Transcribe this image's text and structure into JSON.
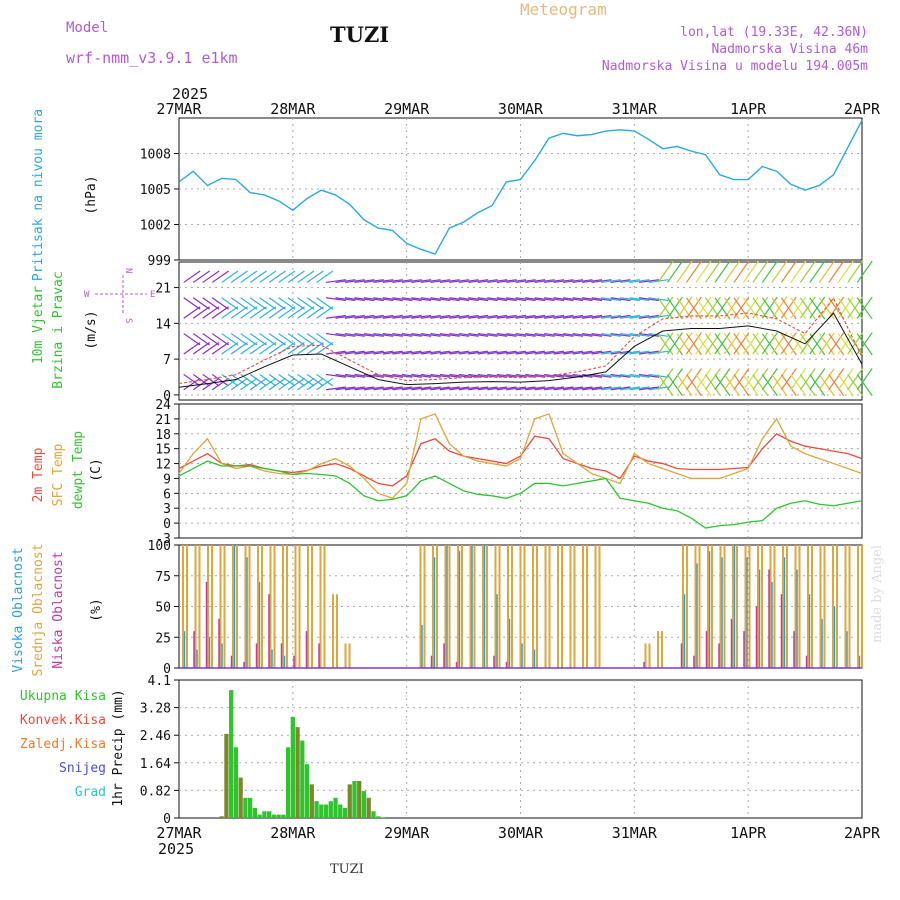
{
  "header": {
    "model_label": "Model",
    "model_version": "wrf-nmm_v3.9.1  e1km",
    "station": "TUZI",
    "title": "Meteogram",
    "location": "lon,lat (19.33E, 42.36N)",
    "elevation": "Nadmorska Visina 46m",
    "model_elevation": "Nadmorska Visina u modelu 194.005m"
  },
  "footer": {
    "station": "TUZI",
    "signature": "made by Angel"
  },
  "time_axis": {
    "year": "2025",
    "labels": [
      "27MAR",
      "28MAR",
      "29MAR",
      "30MAR",
      "31MAR",
      "1APR",
      "2APR"
    ]
  },
  "colors": {
    "pressure": "#2aa9e0",
    "temp2m": "#ee4a3a",
    "sfc_temp": "#dea63c",
    "dewpoint": "#2ec42e",
    "cloud_high": "#2aa0d8",
    "cloud_mid": "#dea63c",
    "cloud_low": "#c03aa0",
    "precip_total": "#2ec42e",
    "precip_conv": "#ee4a3a",
    "precip_frozen": "#ee7a30",
    "snow": "#4a4ae0",
    "hail": "#2cc6c6",
    "wind_purple": "#8a2ac8",
    "wind_cyan": "#22b8d8"
  },
  "panels": {
    "pressure": {
      "ylabel": "Pritisak na nivou mora",
      "unit": "(hPa)"
    },
    "wind": {
      "ylabel_1": "10m Vjetar",
      "ylabel_2": "Brzina i Pravac",
      "unit": "(m/s)",
      "compass_n": "N",
      "compass_s": "S",
      "compass_w": "W",
      "compass_e": "E"
    },
    "temp": {
      "ylabel_1": "2m Temp",
      "ylabel_2": "SFC Temp",
      "ylabel_3": "dewpt Temp",
      "unit": "(C)"
    },
    "cloud": {
      "ylabel_1": "Visoka Oblacnost",
      "ylabel_2": "Srednja Oblacnost",
      "ylabel_3": "Niska Oblacnost",
      "unit": "(%)"
    },
    "precip": {
      "legend": [
        "Ukupna Kisa",
        "Konvek.Kisa",
        "Zaledj.Kisa",
        "Snijeg",
        "Grad"
      ],
      "unit": "1hr Precip (mm)"
    }
  },
  "chart_data": [
    {
      "type": "line",
      "name": "pressure",
      "title": "",
      "ylabel": "Pritisak na nivou mora (hPa)",
      "ylim": [
        999,
        1011
      ],
      "yticks": [
        999,
        1002,
        1005,
        1008
      ],
      "x_hours": [
        0,
        3,
        6,
        9,
        12,
        15,
        18,
        21,
        24,
        27,
        30,
        33,
        36,
        39,
        42,
        45,
        48,
        51,
        54,
        57,
        60,
        63,
        66,
        69,
        72,
        75,
        78,
        81,
        84,
        87,
        90,
        93,
        96,
        99,
        102,
        105,
        108,
        111,
        114,
        117,
        120,
        123,
        126,
        129,
        132,
        135,
        138,
        141,
        144
      ],
      "y": [
        1005.6,
        1006.5,
        1005.3,
        1005.9,
        1005.8,
        1004.7,
        1004.5,
        1004.0,
        1003.2,
        1004.2,
        1004.9,
        1004.5,
        1003.7,
        1002.4,
        1001.7,
        1001.5,
        1000.4,
        999.9,
        999.5,
        1001.7,
        1002.2,
        1003.0,
        1003.6,
        1005.6,
        1005.8,
        1007.4,
        1009.3,
        1009.7,
        1009.5,
        1009.6,
        1009.9,
        1010.0,
        1009.9,
        1009.2,
        1008.4,
        1008.6,
        1008.2,
        1007.9,
        1006.2,
        1005.8,
        1005.8,
        1006.9,
        1006.5,
        1005.4,
        1004.9,
        1005.3,
        1006.2,
        1008.5,
        1010.8
      ]
    },
    {
      "type": "line",
      "name": "wind_speed",
      "title": "",
      "ylabel": "10m Vjetar Brzina i Pravac (m/s)",
      "ylim": [
        -1,
        26
      ],
      "yticks": [
        0,
        7,
        14,
        21
      ],
      "x_hours": [
        0,
        6,
        12,
        18,
        24,
        30,
        36,
        42,
        48,
        54,
        60,
        66,
        72,
        78,
        84,
        90,
        96,
        102,
        108,
        114,
        120,
        126,
        132,
        138,
        144
      ],
      "y": [
        1.5,
        2.2,
        3.0,
        5.5,
        7.8,
        8.0,
        5.5,
        3.0,
        2.0,
        2.2,
        2.5,
        2.6,
        2.5,
        2.8,
        3.5,
        4.5,
        9.5,
        12.5,
        13.0,
        13.0,
        13.5,
        12.5,
        10.0,
        16.0,
        6.0
      ]
    },
    {
      "type": "line",
      "name": "temperature",
      "title": "",
      "ylabel": "2m Temp / SFC Temp / dewpt Temp (C)",
      "ylim": [
        -3,
        24
      ],
      "yticks": [
        -3,
        0,
        3,
        6,
        9,
        12,
        15,
        18,
        21,
        24
      ],
      "x_hours": [
        0,
        3,
        6,
        9,
        12,
        15,
        18,
        21,
        24,
        27,
        30,
        33,
        36,
        39,
        42,
        45,
        48,
        51,
        54,
        57,
        60,
        63,
        66,
        69,
        72,
        75,
        78,
        81,
        84,
        87,
        90,
        93,
        96,
        99,
        102,
        105,
        108,
        111,
        114,
        117,
        120,
        123,
        126,
        129,
        132,
        135,
        138,
        141,
        144
      ],
      "series": [
        {
          "name": "2m Temp",
          "values": [
            11.0,
            12.5,
            14.0,
            12.0,
            11.5,
            11.8,
            11.0,
            10.5,
            10.2,
            10.6,
            11.5,
            12.0,
            11.0,
            9.5,
            8.0,
            7.5,
            9.5,
            16.0,
            17.0,
            14.5,
            13.5,
            13.0,
            12.5,
            12.0,
            13.5,
            17.5,
            17.0,
            13.0,
            12.0,
            11.0,
            10.5,
            9.0,
            13.5,
            12.5,
            12.0,
            11.0,
            10.8,
            10.8,
            10.8,
            11.0,
            11.2,
            15.0,
            18.0,
            16.5,
            15.5,
            15.0,
            14.5,
            14.0,
            13.0
          ]
        },
        {
          "name": "SFC Temp",
          "values": [
            10.0,
            14.0,
            17.0,
            12.0,
            11.0,
            11.5,
            10.5,
            10.0,
            9.8,
            10.5,
            12.0,
            13.0,
            11.5,
            9.0,
            6.0,
            5.0,
            8.0,
            21.0,
            22.0,
            16.0,
            13.5,
            12.5,
            12.0,
            11.5,
            13.0,
            21.0,
            22.0,
            14.0,
            12.0,
            10.0,
            9.0,
            8.0,
            14.0,
            12.0,
            11.0,
            10.0,
            9.0,
            9.0,
            9.0,
            10.0,
            11.0,
            17.0,
            21.0,
            15.5,
            14.0,
            13.0,
            12.0,
            11.0,
            10.0
          ]
        },
        {
          "name": "dewpt Temp",
          "values": [
            9.5,
            11.0,
            12.5,
            11.5,
            11.5,
            11.5,
            11.0,
            10.5,
            9.8,
            10.0,
            9.8,
            9.5,
            8.0,
            5.5,
            4.5,
            4.8,
            5.5,
            8.5,
            9.5,
            8.0,
            6.5,
            5.8,
            5.5,
            5.0,
            6.0,
            8.0,
            8.0,
            7.5,
            8.0,
            8.5,
            9.0,
            5.0,
            4.5,
            4.0,
            3.0,
            2.5,
            1.0,
            -1.0,
            -0.5,
            -0.3,
            0.2,
            0.5,
            3.0,
            4.0,
            4.5,
            3.8,
            3.5,
            4.0,
            4.5
          ]
        }
      ]
    },
    {
      "type": "bar",
      "name": "cloud_cover",
      "title": "",
      "ylabel": "Visoka / Srednja / Niska Oblacnost (%)",
      "ylim": [
        0,
        100
      ],
      "yticks": [
        0,
        25,
        50,
        75,
        100
      ],
      "series": [
        {
          "name": "Visoka Oblacnost",
          "values": [
            30,
            15,
            25,
            20,
            100,
            90,
            70,
            15,
            10,
            0,
            0,
            0,
            0,
            0,
            0,
            0,
            0,
            0,
            0,
            35,
            90,
            100,
            95,
            100,
            100,
            60,
            40,
            20,
            15,
            0,
            0,
            0,
            0,
            0,
            0,
            0,
            0,
            0,
            0,
            0,
            60,
            85,
            95,
            90,
            100,
            90,
            80,
            70,
            90,
            80,
            60,
            40,
            50,
            30,
            10
          ]
        },
        {
          "name": "Srednja Oblacnost",
          "values": [
            100,
            100,
            100,
            100,
            100,
            100,
            100,
            100,
            100,
            100,
            100,
            100,
            60,
            20,
            0,
            0,
            0,
            0,
            0,
            100,
            100,
            100,
            100,
            100,
            100,
            100,
            100,
            100,
            100,
            100,
            100,
            100,
            100,
            100,
            0,
            0,
            0,
            20,
            30,
            0,
            100,
            100,
            100,
            100,
            100,
            100,
            100,
            100,
            100,
            100,
            100,
            100,
            100,
            100,
            100
          ]
        },
        {
          "name": "Niska Oblacnost",
          "values": [
            0,
            30,
            70,
            40,
            10,
            5,
            20,
            60,
            20,
            10,
            30,
            20,
            0,
            0,
            0,
            0,
            0,
            0,
            0,
            0,
            10,
            20,
            5,
            0,
            0,
            10,
            5,
            0,
            0,
            0,
            0,
            0,
            0,
            0,
            0,
            0,
            0,
            5,
            0,
            0,
            20,
            10,
            30,
            20,
            40,
            30,
            50,
            80,
            60,
            30,
            10,
            0,
            0,
            0,
            0
          ]
        }
      ]
    },
    {
      "type": "bar",
      "name": "precipitation",
      "title": "",
      "ylabel": "1hr Precip (mm)",
      "ylim": [
        0,
        4.1
      ],
      "yticks": [
        0,
        0.82,
        1.64,
        2.46,
        3.28,
        4.1
      ],
      "x_hours": [
        9,
        10,
        11,
        12,
        13,
        14,
        15,
        16,
        17,
        18,
        19,
        20,
        21,
        22,
        23,
        24,
        25,
        26,
        27,
        28,
        29,
        30,
        31,
        32,
        33,
        34,
        35,
        36,
        37,
        38,
        39,
        40,
        41,
        42,
        43
      ],
      "series": [
        {
          "name": "Ukupna Kisa",
          "values": [
            0.05,
            2.5,
            3.8,
            2.1,
            1.2,
            0.6,
            0.6,
            0.3,
            0.1,
            0.2,
            0.2,
            0.1,
            0.1,
            0.1,
            2.1,
            3.0,
            2.7,
            2.3,
            1.6,
            1.0,
            0.5,
            0.4,
            0.4,
            0.5,
            0.6,
            0.4,
            0.3,
            1.0,
            1.1,
            1.1,
            0.8,
            0.6,
            0.2,
            0.05,
            0.02
          ]
        },
        {
          "name": "Zaledj.Kisa",
          "values": [
            0.05,
            2.6,
            0,
            0,
            1.2,
            0,
            0,
            0,
            0,
            0,
            0,
            0,
            0,
            0,
            0,
            0,
            2.7,
            0,
            0,
            1.0,
            0,
            0,
            0,
            0,
            0,
            0,
            0,
            1.1,
            0,
            1.2,
            0,
            0.6,
            0,
            0,
            0
          ]
        }
      ]
    }
  ]
}
